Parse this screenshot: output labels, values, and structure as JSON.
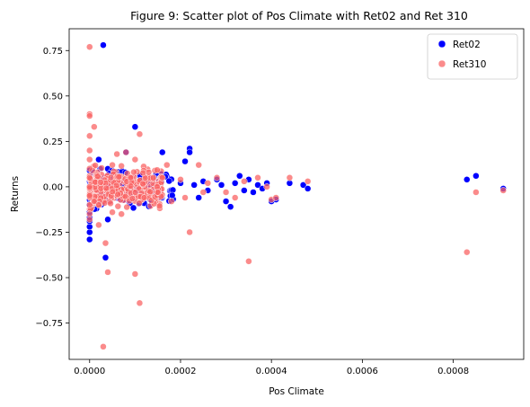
{
  "chart_data": {
    "type": "scatter",
    "title": "Figure 9: Scatter plot of Pos Climate with Ret02 and Ret 310",
    "xlabel": "Pos Climate",
    "ylabel": "Returns",
    "xlim": [
      -4.5e-05,
      0.000955
    ],
    "ylim": [
      -0.95,
      0.87
    ],
    "xticks": [
      0.0,
      0.0002,
      0.0004,
      0.0006,
      0.0008
    ],
    "xtick_labels": [
      "0.0000",
      "0.0002",
      "0.0004",
      "0.0006",
      "0.0008"
    ],
    "yticks": [
      0.75,
      0.5,
      0.25,
      0.0,
      -0.25,
      -0.5,
      -0.75
    ],
    "ytick_labels": [
      "0.75",
      "0.50",
      "0.25",
      "0.00",
      "−0.25",
      "−0.50",
      "−0.75"
    ],
    "legend": {
      "placement": "top-right"
    },
    "series": [
      {
        "name": "Ret02",
        "color": "#0000ff",
        "points": [
          [
            0.0,
            -0.29
          ],
          [
            0.0,
            -0.25
          ],
          [
            0.0,
            -0.22
          ],
          [
            0.0,
            -0.19
          ],
          [
            0.0,
            -0.17
          ],
          [
            0.0,
            -0.14
          ],
          [
            0.0,
            -0.1
          ],
          [
            0.0,
            -0.05
          ],
          [
            0.0,
            0.0
          ],
          [
            0.0,
            0.05
          ],
          [
            0.0,
            0.09
          ],
          [
            5e-06,
            0.03
          ],
          [
            5e-06,
            -0.08
          ],
          [
            1e-05,
            -0.04
          ],
          [
            1e-05,
            0.06
          ],
          [
            1.5e-05,
            -0.12
          ],
          [
            1.8e-05,
            0.02
          ],
          [
            2e-05,
            0.15
          ],
          [
            2.5e-05,
            -0.06
          ],
          [
            3e-05,
            0.78
          ],
          [
            3.5e-05,
            -0.39
          ],
          [
            4e-05,
            -0.18
          ],
          [
            4.5e-05,
            0.04
          ],
          [
            5e-05,
            -0.03
          ],
          [
            6e-05,
            0.08
          ],
          [
            7e-05,
            -0.07
          ],
          [
            8e-05,
            0.19
          ],
          [
            9e-05,
            -0.02
          ],
          [
            0.0001,
            0.33
          ],
          [
            0.00011,
            0.06
          ],
          [
            0.00012,
            -0.09
          ],
          [
            0.00013,
            0.03
          ],
          [
            0.00014,
            0.01
          ],
          [
            0.00015,
            -0.05
          ],
          [
            0.00016,
            0.19
          ],
          [
            0.00017,
            0.06
          ],
          [
            0.00018,
            -0.04
          ],
          [
            0.0002,
            0.02
          ],
          [
            0.00021,
            0.14
          ],
          [
            0.00022,
            0.21
          ],
          [
            0.00022,
            0.19
          ],
          [
            0.00023,
            0.01
          ],
          [
            0.00024,
            -0.06
          ],
          [
            0.00025,
            0.03
          ],
          [
            0.00026,
            -0.02
          ],
          [
            0.00028,
            0.04
          ],
          [
            0.00029,
            0.01
          ],
          [
            0.0003,
            -0.08
          ],
          [
            0.00031,
            -0.11
          ],
          [
            0.00032,
            0.02
          ],
          [
            0.00033,
            0.06
          ],
          [
            0.00034,
            -0.02
          ],
          [
            0.00035,
            0.04
          ],
          [
            0.00036,
            -0.03
          ],
          [
            0.00037,
            0.01
          ],
          [
            0.00038,
            -0.01
          ],
          [
            0.00039,
            0.02
          ],
          [
            0.0004,
            -0.08
          ],
          [
            0.00041,
            -0.07
          ],
          [
            0.00044,
            0.02
          ],
          [
            0.00047,
            0.01
          ],
          [
            0.00048,
            -0.01
          ],
          [
            0.00083,
            0.04
          ],
          [
            0.00085,
            0.06
          ],
          [
            0.00091,
            -0.01
          ]
        ]
      },
      {
        "name": "Ret310",
        "color": "#fa6464",
        "points": [
          [
            0.0,
            0.77
          ],
          [
            0.0,
            0.4
          ],
          [
            0.0,
            0.39
          ],
          [
            0.0,
            0.28
          ],
          [
            0.0,
            0.2
          ],
          [
            0.0,
            0.15
          ],
          [
            0.0,
            0.1
          ],
          [
            0.0,
            0.05
          ],
          [
            0.0,
            0.0
          ],
          [
            0.0,
            -0.05
          ],
          [
            0.0,
            -0.1
          ],
          [
            0.0,
            -0.15
          ],
          [
            0.0,
            -0.18
          ],
          [
            1e-05,
            0.33
          ],
          [
            1e-05,
            -0.08
          ],
          [
            2e-05,
            -0.1
          ],
          [
            2e-05,
            -0.21
          ],
          [
            3e-05,
            -0.88
          ],
          [
            3.5e-05,
            -0.31
          ],
          [
            4e-05,
            -0.47
          ],
          [
            5e-05,
            -0.14
          ],
          [
            5e-05,
            0.12
          ],
          [
            6e-05,
            0.18
          ],
          [
            7e-05,
            -0.15
          ],
          [
            8e-05,
            0.19
          ],
          [
            9e-05,
            0.05
          ],
          [
            0.0001,
            -0.48
          ],
          [
            0.0001,
            0.15
          ],
          [
            0.00011,
            -0.64
          ],
          [
            0.00011,
            0.29
          ],
          [
            0.00012,
            -0.06
          ],
          [
            0.00013,
            0.08
          ],
          [
            0.00014,
            0.05
          ],
          [
            0.00015,
            -0.03
          ],
          [
            0.00016,
            0.05
          ],
          [
            0.00017,
            0.12
          ],
          [
            0.00018,
            -0.08
          ],
          [
            0.0002,
            0.04
          ],
          [
            0.00021,
            -0.06
          ],
          [
            0.00022,
            -0.25
          ],
          [
            0.00024,
            0.12
          ],
          [
            0.00025,
            -0.03
          ],
          [
            0.00026,
            0.02
          ],
          [
            0.00028,
            0.05
          ],
          [
            0.0003,
            -0.03
          ],
          [
            0.00032,
            -0.06
          ],
          [
            0.00034,
            0.03
          ],
          [
            0.00035,
            -0.41
          ],
          [
            0.00037,
            0.05
          ],
          [
            0.00039,
            0.0
          ],
          [
            0.0004,
            -0.07
          ],
          [
            0.00041,
            -0.06
          ],
          [
            0.00044,
            0.05
          ],
          [
            0.00048,
            0.03
          ],
          [
            0.00083,
            -0.36
          ],
          [
            0.00085,
            -0.03
          ],
          [
            0.00091,
            -0.02
          ]
        ],
        "cluster": {
          "x_range": [
            0.0,
            0.00016
          ],
          "y_range": [
            -0.16,
            0.14
          ],
          "note": "dense overlapping cloud"
        }
      }
    ]
  }
}
